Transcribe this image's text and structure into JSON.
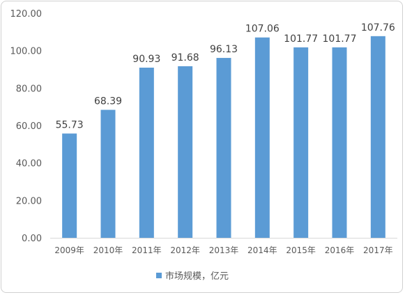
{
  "chart_data": {
    "type": "bar",
    "categories": [
      "2009年",
      "2010年",
      "2011年",
      "2012年",
      "2013年",
      "2014年",
      "2015年",
      "2016年",
      "2017年"
    ],
    "series": [
      {
        "name": "市场规模，亿元",
        "values": [
          55.73,
          68.39,
          90.93,
          91.68,
          96.13,
          107.06,
          101.77,
          101.77,
          107.76
        ],
        "color": "#5b9bd5"
      }
    ],
    "data_labels": [
      "55.73",
      "68.39",
      "90.93",
      "91.68",
      "96.13",
      "107.06",
      "101.77",
      "101.77",
      "107.76"
    ],
    "y_ticks": [
      "0.00",
      "20.00",
      "40.00",
      "60.00",
      "80.00",
      "100.00",
      "120.00"
    ],
    "ylim": [
      0,
      120
    ],
    "grid": false,
    "legend_position": "bottom",
    "axis_color": "#d9d9d9"
  }
}
